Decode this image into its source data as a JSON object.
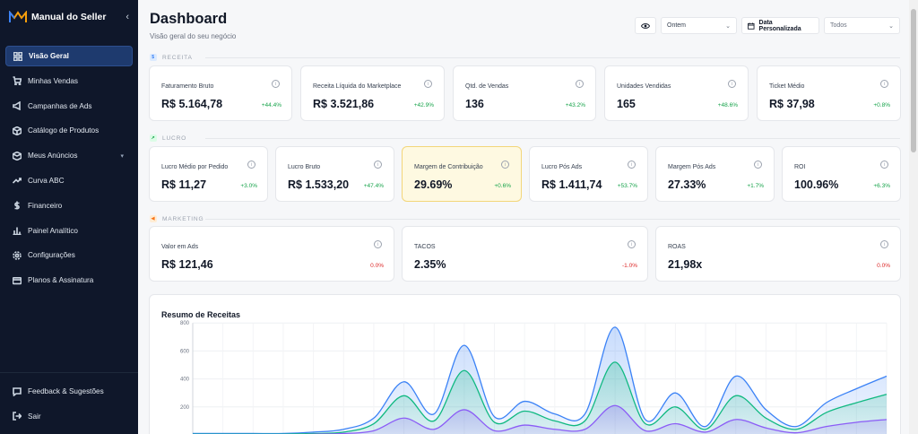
{
  "sidebar": {
    "brand": "Manual do Seller",
    "collapse_icon": "chevron-left-icon",
    "items": [
      {
        "label": "Visão Geral",
        "icon": "grid-icon",
        "active": true
      },
      {
        "label": "Minhas Vendas",
        "icon": "cart-icon"
      },
      {
        "label": "Campanhas de Ads",
        "icon": "megaphone-icon"
      },
      {
        "label": "Catálogo de Produtos",
        "icon": "box-icon"
      },
      {
        "label": "Meus Anúncios",
        "icon": "package-icon",
        "has_submenu": true
      },
      {
        "label": "Curva ABC",
        "icon": "trend-icon"
      },
      {
        "label": "Financeiro",
        "icon": "dollar-icon"
      },
      {
        "label": "Painel Analítico",
        "icon": "bar-chart-icon"
      },
      {
        "label": "Configurações",
        "icon": "gear-icon"
      },
      {
        "label": "Planos & Assinatura",
        "icon": "card-icon"
      }
    ],
    "bottom": [
      {
        "label": "Feedback & Sugestões",
        "icon": "message-icon"
      },
      {
        "label": "Sair",
        "icon": "logout-icon"
      }
    ]
  },
  "header": {
    "title": "Dashboard",
    "subtitle": "Visão geral do seu negócio",
    "period": "Ontem",
    "date_button": "Data Personalizada",
    "account": "Todos"
  },
  "sections": {
    "receita": "RECEITA",
    "lucro": "LUCRO",
    "marketing": "MARKETING"
  },
  "receita_cards": [
    {
      "label": "Faturamento Bruto",
      "value": "R$ 5.164,78",
      "delta": "+44.4%"
    },
    {
      "label": "Receita Líquida do Marketplace",
      "value": "R$ 3.521,86",
      "delta": "+42.9%"
    },
    {
      "label": "Qtd. de Vendas",
      "value": "136",
      "delta": "+43.2%"
    },
    {
      "label": "Unidades Vendidas",
      "value": "165",
      "delta": "+48.6%"
    },
    {
      "label": "Ticket Médio",
      "value": "R$ 37,98",
      "delta": "+0.8%"
    }
  ],
  "lucro_cards": [
    {
      "label": "Lucro Médio por Pedido",
      "value": "R$ 11,27",
      "delta": "+3.0%"
    },
    {
      "label": "Lucro Bruto",
      "value": "R$ 1.533,20",
      "delta": "+47.4%"
    },
    {
      "label": "Margem de Contribuição",
      "value": "29.69%",
      "delta": "+0.6%"
    },
    {
      "label": "Lucro Pós Ads",
      "value": "R$ 1.411,74",
      "delta": "+53.7%"
    },
    {
      "label": "Margem Pós Ads",
      "value": "27.33%",
      "delta": "+1.7%"
    },
    {
      "label": "ROI",
      "value": "100.96%",
      "delta": "+6.3%"
    }
  ],
  "marketing_cards": [
    {
      "label": "Valor em Ads",
      "value": "R$ 121,46",
      "delta": "0.0%"
    },
    {
      "label": "TACOS",
      "value": "2.35%",
      "delta": "-1.0%"
    },
    {
      "label": "ROAS",
      "value": "21,98x",
      "delta": "0.0%"
    }
  ],
  "chart_data": {
    "type": "area",
    "title": "Resumo de Receitas",
    "ylim": [
      0,
      800
    ],
    "yticks": [
      "800",
      "600",
      "400",
      "200"
    ],
    "x": [
      0,
      1,
      2,
      3,
      4,
      5,
      6,
      7,
      8,
      9,
      10,
      11,
      12,
      13,
      14,
      15,
      16,
      17,
      18,
      19,
      20,
      21,
      22,
      23
    ],
    "series": [
      {
        "color": "#3b82f6",
        "values": [
          10,
          10,
          10,
          10,
          20,
          40,
          120,
          380,
          150,
          640,
          130,
          240,
          150,
          150,
          770,
          110,
          300,
          60,
          420,
          180,
          60,
          230,
          330,
          420
        ]
      },
      {
        "color": "#10b981",
        "values": [
          5,
          5,
          5,
          5,
          10,
          20,
          80,
          280,
          100,
          460,
          90,
          170,
          100,
          100,
          520,
          80,
          200,
          40,
          280,
          120,
          40,
          160,
          230,
          290
        ]
      },
      {
        "color": "#8b5cf6",
        "values": [
          0,
          0,
          0,
          0,
          5,
          10,
          30,
          120,
          40,
          180,
          30,
          70,
          40,
          40,
          210,
          30,
          80,
          20,
          110,
          50,
          15,
          60,
          90,
          110
        ]
      }
    ],
    "grid": true
  }
}
